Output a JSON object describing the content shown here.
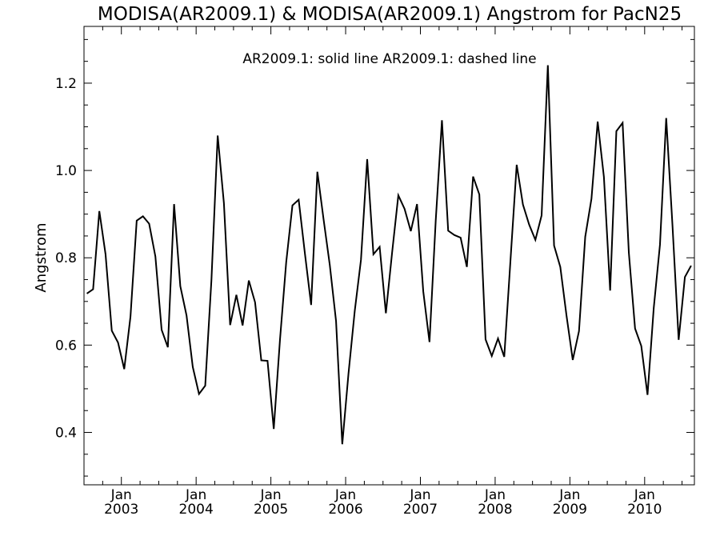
{
  "chart_data": {
    "type": "line",
    "title": "MODISA(AR2009.1) & MODISA(AR2009.1)  Angstrom for PacN25",
    "annotation": "AR2009.1: solid line   AR2009.1: dashed line",
    "xlabel": "",
    "ylabel": "Angstrom",
    "xlim": [
      "2002-07-01",
      "2010-08-31"
    ],
    "ylim": [
      0.28,
      1.33
    ],
    "y_ticks": [
      0.4,
      0.6,
      0.8,
      1.0,
      1.2
    ],
    "y_tick_labels": [
      "0.4",
      "0.6",
      "0.8",
      "1.0",
      "1.2"
    ],
    "x_ticks": [
      {
        "date": "2003-01-01",
        "month": "Jan",
        "year": "2003"
      },
      {
        "date": "2004-01-01",
        "month": "Jan",
        "year": "2004"
      },
      {
        "date": "2005-01-01",
        "month": "Jan",
        "year": "2005"
      },
      {
        "date": "2006-01-01",
        "month": "Jan",
        "year": "2006"
      },
      {
        "date": "2007-01-01",
        "month": "Jan",
        "year": "2007"
      },
      {
        "date": "2008-01-01",
        "month": "Jan",
        "year": "2008"
      },
      {
        "date": "2009-01-01",
        "month": "Jan",
        "year": "2009"
      },
      {
        "date": "2010-01-01",
        "month": "Jan",
        "year": "2010"
      }
    ],
    "grid": false,
    "series": [
      {
        "style": "solid",
        "color": "#000000",
        "x": [
          "2002-07",
          "2002-08",
          "2002-09",
          "2002-10",
          "2002-11",
          "2002-12",
          "2003-01",
          "2003-02",
          "2003-03",
          "2003-04",
          "2003-05",
          "2003-06",
          "2003-07",
          "2003-08",
          "2003-09",
          "2003-10",
          "2003-11",
          "2003-12",
          "2004-01",
          "2004-02",
          "2004-03",
          "2004-04",
          "2004-05",
          "2004-06",
          "2004-07",
          "2004-08",
          "2004-09",
          "2004-10",
          "2004-11",
          "2004-12",
          "2005-01",
          "2005-02",
          "2005-03",
          "2005-04",
          "2005-05",
          "2005-06",
          "2005-07",
          "2005-08",
          "2005-09",
          "2005-10",
          "2005-11",
          "2005-12",
          "2006-01",
          "2006-02",
          "2006-03",
          "2006-04",
          "2006-05",
          "2006-06",
          "2006-07",
          "2006-08",
          "2006-09",
          "2006-10",
          "2006-11",
          "2006-12",
          "2007-01",
          "2007-02",
          "2007-03",
          "2007-04",
          "2007-05",
          "2007-06",
          "2007-07",
          "2007-08",
          "2007-09",
          "2007-10",
          "2007-11",
          "2007-12",
          "2008-01",
          "2008-02",
          "2008-03",
          "2008-04",
          "2008-05",
          "2008-06",
          "2008-07",
          "2008-08",
          "2008-09",
          "2008-10",
          "2008-11",
          "2008-12",
          "2009-01",
          "2009-02",
          "2009-03",
          "2009-04",
          "2009-05",
          "2009-06",
          "2009-07",
          "2009-08",
          "2009-09",
          "2009-10",
          "2009-11",
          "2009-12",
          "2010-01",
          "2010-02",
          "2010-03",
          "2010-04",
          "2010-05",
          "2010-06",
          "2010-07",
          "2010-08"
        ],
        "values": [
          0.718,
          0.728,
          0.907,
          0.808,
          0.633,
          0.606,
          0.545,
          0.665,
          0.885,
          0.895,
          0.878,
          0.803,
          0.635,
          0.595,
          0.923,
          0.735,
          0.668,
          0.55,
          0.488,
          0.507,
          0.75,
          1.08,
          0.925,
          0.646,
          0.715,
          0.645,
          0.748,
          0.698,
          0.565,
          0.564,
          0.408,
          0.612,
          0.79,
          0.92,
          0.933,
          0.81,
          0.692,
          0.997,
          0.888,
          0.783,
          0.655,
          0.373,
          0.535,
          0.678,
          0.795,
          1.026,
          0.808,
          0.825,
          0.673,
          0.812,
          0.943,
          0.912,
          0.861,
          0.923,
          0.723,
          0.607,
          0.885,
          1.115,
          0.862,
          0.852,
          0.846,
          0.779,
          0.986,
          0.945,
          0.613,
          0.575,
          0.615,
          0.573,
          0.794,
          1.013,
          0.922,
          0.876,
          0.841,
          0.897,
          1.241,
          0.828,
          0.779,
          0.667,
          0.566,
          0.632,
          0.848,
          0.935,
          1.112,
          0.985,
          0.725,
          1.09,
          1.109,
          0.812,
          0.638,
          0.598,
          0.486,
          0.685,
          0.83,
          1.12,
          0.876,
          0.612,
          0.756,
          0.782
        ]
      }
    ]
  }
}
